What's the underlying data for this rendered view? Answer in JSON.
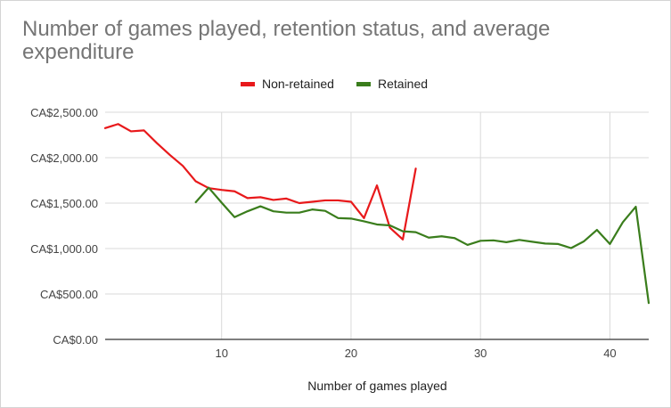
{
  "chart_data": {
    "type": "line",
    "title": "Number of games played, retention status, and average expenditure",
    "xlabel": "Number of games played",
    "ylabel": "",
    "xlim": [
      1,
      43
    ],
    "ylim": [
      0,
      2500
    ],
    "x_ticks": [
      10,
      20,
      30,
      40
    ],
    "y_ticks": [
      {
        "value": 0,
        "label": "CA$0.00"
      },
      {
        "value": 500,
        "label": "CA$500.00"
      },
      {
        "value": 1000,
        "label": "CA$1,000.00"
      },
      {
        "value": 1500,
        "label": "CA$1,500.00"
      },
      {
        "value": 2000,
        "label": "CA$2,000.00"
      },
      {
        "value": 2500,
        "label": "CA$2,500.00"
      }
    ],
    "grid": true,
    "legend": "top",
    "series": [
      {
        "name": "Non-retained",
        "color": "#e8191b",
        "points": [
          [
            1,
            2325
          ],
          [
            2,
            2370
          ],
          [
            3,
            2290
          ],
          [
            4,
            2300
          ],
          [
            5,
            2160
          ],
          [
            6,
            2030
          ],
          [
            7,
            1910
          ],
          [
            8,
            1740
          ],
          [
            9,
            1665
          ],
          [
            10,
            1645
          ],
          [
            11,
            1630
          ],
          [
            12,
            1555
          ],
          [
            13,
            1565
          ],
          [
            14,
            1535
          ],
          [
            15,
            1550
          ],
          [
            16,
            1500
          ],
          [
            17,
            1515
          ],
          [
            18,
            1530
          ],
          [
            19,
            1530
          ],
          [
            20,
            1515
          ],
          [
            21,
            1335
          ],
          [
            22,
            1695
          ],
          [
            23,
            1230
          ],
          [
            24,
            1100
          ],
          [
            25,
            1880
          ]
        ]
      },
      {
        "name": "Retained",
        "color": "#3a7d1c",
        "points": [
          [
            8,
            1510
          ],
          [
            9,
            1670
          ],
          [
            10,
            1505
          ],
          [
            11,
            1345
          ],
          [
            12,
            1410
          ],
          [
            13,
            1465
          ],
          [
            14,
            1410
          ],
          [
            15,
            1395
          ],
          [
            16,
            1395
          ],
          [
            17,
            1430
          ],
          [
            18,
            1415
          ],
          [
            19,
            1335
          ],
          [
            20,
            1330
          ],
          [
            21,
            1300
          ],
          [
            22,
            1265
          ],
          [
            23,
            1255
          ],
          [
            24,
            1190
          ],
          [
            25,
            1180
          ],
          [
            26,
            1120
          ],
          [
            27,
            1135
          ],
          [
            28,
            1115
          ],
          [
            29,
            1040
          ],
          [
            30,
            1085
          ],
          [
            31,
            1090
          ],
          [
            32,
            1070
          ],
          [
            33,
            1095
          ],
          [
            34,
            1075
          ],
          [
            35,
            1055
          ],
          [
            36,
            1050
          ],
          [
            37,
            1005
          ],
          [
            38,
            1080
          ],
          [
            39,
            1205
          ],
          [
            40,
            1050
          ],
          [
            41,
            1290
          ],
          [
            42,
            1460
          ],
          [
            43,
            400
          ]
        ]
      }
    ]
  }
}
